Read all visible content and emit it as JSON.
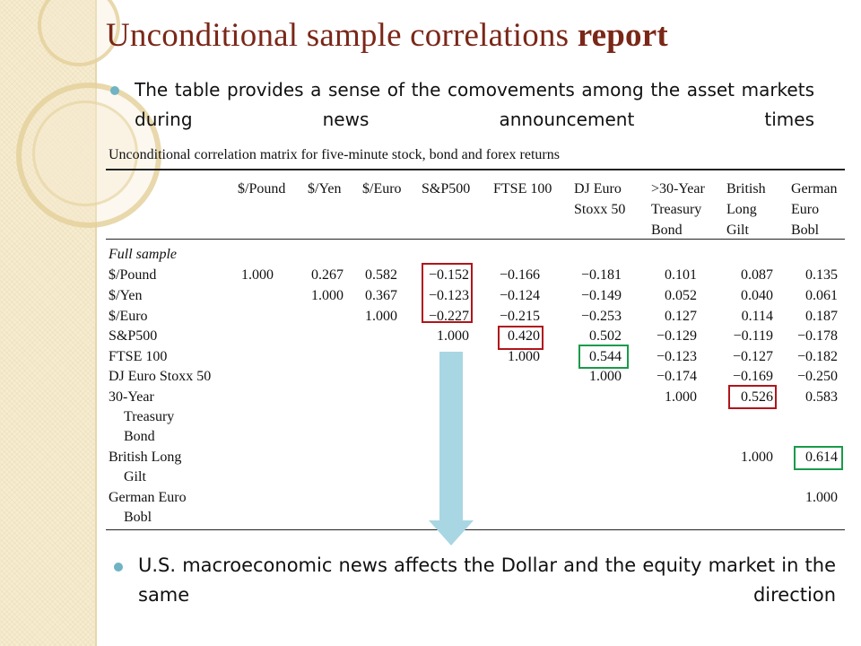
{
  "title": {
    "main": "Unconditional sample correlations",
    "emph": "report"
  },
  "bullets": [
    "The table provides a sense of the comovements among the asset markets during news announcement times",
    "U.S. macroeconomic news affects the Dollar and the equity market in the same direction"
  ],
  "table": {
    "caption": "Unconditional correlation matrix for five-minute stock, bond and forex returns",
    "columns": [
      [
        "$/Pound"
      ],
      [
        "$/Yen"
      ],
      [
        "$/Euro"
      ],
      [
        "S&P500"
      ],
      [
        "FTSE 100"
      ],
      [
        "DJ Euro",
        "Stoxx 50"
      ],
      [
        ">30-Year",
        "Treasury",
        "Bond"
      ],
      [
        "British",
        "Long",
        "Gilt"
      ],
      [
        "German",
        "Euro",
        "Bobl"
      ]
    ],
    "section_label": "Full sample",
    "rows": [
      {
        "label": [
          "$/Pound"
        ],
        "values": [
          "1.000",
          "0.267",
          "0.582",
          "−0.152",
          "−0.166",
          "−0.181",
          "0.101",
          "0.087",
          "0.135"
        ]
      },
      {
        "label": [
          "$/Yen"
        ],
        "values": [
          "",
          "1.000",
          "0.367",
          "−0.123",
          "−0.124",
          "−0.149",
          "0.052",
          "0.040",
          "0.061"
        ]
      },
      {
        "label": [
          "$/Euro"
        ],
        "values": [
          "",
          "",
          "1.000",
          "−0.227",
          "−0.215",
          "−0.253",
          "0.127",
          "0.114",
          "0.187"
        ]
      },
      {
        "label": [
          "S&P500"
        ],
        "values": [
          "",
          "",
          "",
          "1.000",
          "0.420",
          "0.502",
          "−0.129",
          "−0.119",
          "−0.178"
        ]
      },
      {
        "label": [
          "FTSE 100"
        ],
        "values": [
          "",
          "",
          "",
          "",
          "1.000",
          "0.544",
          "−0.123",
          "−0.127",
          "−0.182"
        ]
      },
      {
        "label": [
          "DJ Euro Stoxx 50"
        ],
        "values": [
          "",
          "",
          "",
          "",
          "",
          "1.000",
          "−0.174",
          "−0.169",
          "−0.250"
        ]
      },
      {
        "label": [
          "30-Year",
          "Treasury",
          "Bond"
        ],
        "values": [
          "",
          "",
          "",
          "",
          "",
          "",
          "1.000",
          "0.526",
          "0.583"
        ]
      },
      {
        "label": [
          "British Long",
          "Gilt"
        ],
        "values": [
          "",
          "",
          "",
          "",
          "",
          "",
          "",
          "1.000",
          "0.614"
        ]
      },
      {
        "label": [
          "German Euro",
          "Bobl"
        ],
        "values": [
          "",
          "",
          "",
          "",
          "",
          "",
          "",
          "",
          "1.000"
        ]
      }
    ]
  },
  "highlights": [
    {
      "cells": "$/Pound..$/Euro × S&P500",
      "color": "#b0151c"
    },
    {
      "cells": "S&P500 × FTSE 100",
      "color": "#b0151c"
    },
    {
      "cells": "FTSE 100 × DJ Euro Stoxx 50",
      "color": "#1a9a4a"
    },
    {
      "cells": "30-Year Treasury Bond × British Long Gilt",
      "color": "#b0151c"
    },
    {
      "cells": "British Long Gilt × German Euro Bobl",
      "color": "#1a9a4a"
    }
  ],
  "colors": {
    "title": "#7a2718",
    "bullet": "#6fb3c4",
    "arrow": "#a9d6e3",
    "band": "#f6ecd0"
  }
}
